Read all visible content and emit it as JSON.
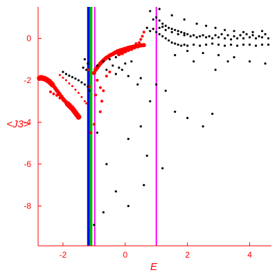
{
  "chart_data": {
    "type": "scatter",
    "xlabel": "E",
    "ylabel": "<J3>",
    "xlim": [
      -2.8,
      4.7
    ],
    "ylim": [
      -9.9,
      1.5
    ],
    "x_ticks": [
      -2,
      0,
      2,
      4
    ],
    "y_ticks": [
      0,
      -2,
      -4,
      -6,
      -8
    ],
    "colors": {
      "axes": "#ff0000",
      "blue_line": "#0000ff",
      "green_line": "#00bb00",
      "magenta_line": "#ff00ff",
      "red_points": "#ff0000",
      "black_points": "#000000"
    },
    "vertical_lines": [
      {
        "x": -1.18,
        "color": "#0000ff"
      },
      {
        "x": -1.1,
        "color": "#00bb00"
      },
      {
        "x": -0.98,
        "color": "#ff00ff"
      },
      {
        "x": 1.0,
        "color": "#ff00ff"
      }
    ],
    "series": [
      {
        "color": "#ff0000",
        "points": [
          [
            -2.75,
            -1.9
          ],
          [
            -2.7,
            -1.88
          ],
          [
            -2.65,
            -1.9
          ],
          [
            -2.6,
            -1.92
          ],
          [
            -2.55,
            -1.95
          ],
          [
            -2.5,
            -2.0
          ],
          [
            -2.45,
            -2.05
          ],
          [
            -2.4,
            -2.12
          ],
          [
            -2.35,
            -2.2
          ],
          [
            -2.3,
            -2.28
          ],
          [
            -2.25,
            -2.38
          ],
          [
            -2.2,
            -2.48
          ],
          [
            -2.15,
            -2.58
          ],
          [
            -2.1,
            -2.68
          ],
          [
            -2.05,
            -2.78
          ],
          [
            -2.0,
            -2.88
          ],
          [
            -1.95,
            -2.97
          ],
          [
            -1.9,
            -3.05
          ],
          [
            -1.85,
            -3.13
          ],
          [
            -1.8,
            -3.2
          ],
          [
            -1.75,
            -3.28
          ],
          [
            -1.7,
            -3.35
          ],
          [
            -1.65,
            -3.45
          ],
          [
            -1.6,
            -3.55
          ],
          [
            -1.55,
            -3.65
          ],
          [
            -1.5,
            -3.75
          ],
          [
            -2.4,
            -2.55
          ],
          [
            -2.3,
            -2.65
          ],
          [
            -2.2,
            -2.72
          ],
          [
            -2.1,
            -2.85
          ],
          [
            -2.0,
            -2.95
          ],
          [
            -1.9,
            -3.1
          ],
          [
            -1.8,
            -3.25
          ],
          [
            -1.7,
            -3.38
          ],
          [
            -2.1,
            -1.75
          ],
          [
            -2.0,
            -1.88
          ],
          [
            -1.9,
            -2.0
          ],
          [
            -1.8,
            -2.15
          ],
          [
            -1.7,
            -2.28
          ],
          [
            -1.6,
            -2.45
          ],
          [
            -1.5,
            -2.6
          ],
          [
            -1.4,
            -2.8
          ],
          [
            -1.3,
            -3.0
          ],
          [
            -1.25,
            -3.1
          ],
          [
            -1.0,
            -1.65
          ],
          [
            -0.95,
            -1.5
          ],
          [
            -0.9,
            -1.4
          ],
          [
            -0.85,
            -1.3
          ],
          [
            -0.8,
            -1.2
          ],
          [
            -0.75,
            -1.12
          ],
          [
            -0.7,
            -1.05
          ],
          [
            -0.65,
            -0.98
          ],
          [
            -0.6,
            -0.92
          ],
          [
            -0.55,
            -0.88
          ],
          [
            -0.5,
            -0.82
          ],
          [
            -0.45,
            -0.78
          ],
          [
            -0.4,
            -0.75
          ],
          [
            -0.35,
            -0.7
          ],
          [
            -0.3,
            -0.66
          ],
          [
            -0.25,
            -0.62
          ],
          [
            -0.2,
            -0.6
          ],
          [
            -0.15,
            -0.56
          ],
          [
            -0.1,
            -0.55
          ],
          [
            -0.05,
            -0.52
          ],
          [
            0.0,
            -0.5
          ],
          [
            0.05,
            -0.48
          ],
          [
            0.1,
            -0.45
          ],
          [
            0.15,
            -0.43
          ],
          [
            0.2,
            -0.42
          ],
          [
            0.25,
            -0.4
          ],
          [
            0.3,
            -0.38
          ],
          [
            0.35,
            -0.37
          ],
          [
            0.4,
            -0.36
          ],
          [
            0.45,
            -0.35
          ],
          [
            0.5,
            -0.34
          ],
          [
            0.55,
            -0.33
          ],
          [
            0.6,
            -0.32
          ],
          [
            -0.2,
            -0.75
          ],
          [
            -0.1,
            -0.7
          ],
          [
            0.0,
            -0.62
          ],
          [
            0.1,
            -0.55
          ],
          [
            0.2,
            -0.5
          ],
          [
            0.3,
            -0.46
          ],
          [
            0.4,
            -0.42
          ],
          [
            -0.9,
            -2.0
          ],
          [
            -0.8,
            -2.35
          ],
          [
            -0.75,
            -3.0
          ],
          [
            -0.7,
            -2.5
          ],
          [
            -0.6,
            -1.8
          ],
          [
            -0.5,
            -1.6
          ],
          [
            -1.2,
            -1.5
          ],
          [
            -1.15,
            -2.3
          ],
          [
            -0.8,
            -3.5
          ],
          [
            -0.95,
            -2.7
          ],
          [
            -1.1,
            -4.5
          ],
          [
            -1.0,
            -4.1
          ],
          [
            0.6,
            0.3
          ],
          [
            0.55,
            0.1
          ],
          [
            0.5,
            -0.05
          ],
          [
            0.45,
            -0.2
          ],
          [
            0.35,
            -0.25
          ],
          [
            0.7,
            0.5
          ],
          [
            0.8,
            0.55
          ],
          [
            0.3,
            -4.5
          ]
        ],
        "sizes": [
          4,
          4,
          4,
          4,
          4,
          4,
          4,
          4,
          4,
          3,
          3,
          3,
          3,
          3,
          3,
          3,
          3,
          3,
          4,
          4,
          4,
          4,
          4,
          4,
          4,
          4,
          2,
          2,
          2,
          2,
          2,
          2,
          2,
          2,
          1.5,
          1.5,
          1.5,
          1.5,
          1.5,
          1.5,
          1.5,
          1.5,
          1.5,
          1.5,
          3,
          3,
          3,
          3,
          3,
          3,
          3,
          3,
          3,
          3,
          3,
          3,
          3,
          3,
          3,
          3,
          3,
          3,
          3,
          3,
          3,
          3,
          3,
          3,
          3,
          3,
          3,
          3,
          3,
          3,
          3,
          3,
          3,
          3,
          3,
          3,
          3,
          3,
          2,
          2,
          2,
          2,
          2,
          2,
          2,
          2,
          2,
          2,
          2,
          2,
          2,
          2,
          2,
          2,
          2,
          2,
          2,
          1.5
        ]
      },
      {
        "color": "#000000",
        "points": [
          [
            -2.0,
            -1.6
          ],
          [
            -1.9,
            -1.7
          ],
          [
            -1.8,
            -1.78
          ],
          [
            -1.7,
            -1.85
          ],
          [
            -1.6,
            -1.92
          ],
          [
            -1.5,
            -2.0
          ],
          [
            -1.4,
            -2.1
          ],
          [
            -1.3,
            -2.2
          ],
          [
            -1.2,
            -2.3
          ],
          [
            -1.35,
            -1.4
          ],
          [
            -1.25,
            -1.5
          ],
          [
            -1.15,
            -2.5
          ],
          [
            -1.2,
            -1.2
          ],
          [
            -1.3,
            -1.0
          ],
          [
            -0.9,
            -1.3
          ],
          [
            -0.7,
            -1.1
          ],
          [
            -0.5,
            -1.0
          ],
          [
            -0.3,
            -0.9
          ],
          [
            -0.6,
            -1.5
          ],
          [
            -0.4,
            -1.3
          ],
          [
            -0.2,
            -1.4
          ],
          [
            0.0,
            -1.2
          ],
          [
            0.2,
            -1.1
          ],
          [
            -0.3,
            -1.7
          ],
          [
            -0.1,
            -1.5
          ],
          [
            0.1,
            -1.8
          ],
          [
            0.4,
            -2.2
          ],
          [
            0.5,
            -1.9
          ],
          [
            0.7,
            0.5
          ],
          [
            0.8,
            0.35
          ],
          [
            0.9,
            0.45
          ],
          [
            1.0,
            0.3
          ],
          [
            1.1,
            0.2
          ],
          [
            1.2,
            0.1
          ],
          [
            1.3,
            0.0
          ],
          [
            1.4,
            -0.1
          ],
          [
            1.5,
            -0.2
          ],
          [
            1.6,
            -0.25
          ],
          [
            1.7,
            -0.3
          ],
          [
            1.8,
            -0.35
          ],
          [
            1.9,
            -0.3
          ],
          [
            2.0,
            -0.35
          ],
          [
            2.2,
            -0.3
          ],
          [
            2.4,
            -0.35
          ],
          [
            2.6,
            -0.3
          ],
          [
            2.8,
            -0.25
          ],
          [
            3.0,
            -0.3
          ],
          [
            3.2,
            -0.35
          ],
          [
            3.4,
            -0.3
          ],
          [
            3.6,
            -0.35
          ],
          [
            3.8,
            -0.3
          ],
          [
            4.0,
            -0.3
          ],
          [
            4.2,
            -0.35
          ],
          [
            4.4,
            -0.3
          ],
          [
            4.6,
            -0.3
          ],
          [
            0.9,
            0.9
          ],
          [
            1.0,
            1.0
          ],
          [
            1.1,
            0.85
          ],
          [
            1.2,
            0.7
          ],
          [
            1.3,
            0.6
          ],
          [
            1.4,
            0.5
          ],
          [
            1.5,
            0.45
          ],
          [
            1.6,
            0.4
          ],
          [
            1.7,
            0.35
          ],
          [
            1.8,
            0.3
          ],
          [
            1.9,
            0.25
          ],
          [
            2.0,
            0.2
          ],
          [
            2.2,
            0.15
          ],
          [
            2.4,
            0.1
          ],
          [
            2.6,
            0.05
          ],
          [
            2.8,
            0.0
          ],
          [
            3.0,
            0.05
          ],
          [
            3.2,
            0.0
          ],
          [
            3.4,
            -0.05
          ],
          [
            3.6,
            0.0
          ],
          [
            3.8,
            0.0
          ],
          [
            4.0,
            0.05
          ],
          [
            4.2,
            0.0
          ],
          [
            4.4,
            0.05
          ],
          [
            4.6,
            0.0
          ],
          [
            1.1,
            0.5
          ],
          [
            1.2,
            0.55
          ],
          [
            1.3,
            0.4
          ],
          [
            1.5,
            0.3
          ],
          [
            1.7,
            0.2
          ],
          [
            1.9,
            0.15
          ],
          [
            2.1,
            0.1
          ],
          [
            2.3,
            0.05
          ],
          [
            2.5,
            0.15
          ],
          [
            2.7,
            0.1
          ],
          [
            2.9,
            0.15
          ],
          [
            3.1,
            0.2
          ],
          [
            3.3,
            0.15
          ],
          [
            3.5,
            0.1
          ],
          [
            3.7,
            0.15
          ],
          [
            3.9,
            0.2
          ],
          [
            4.1,
            0.15
          ],
          [
            4.3,
            0.1
          ],
          [
            4.5,
            0.2
          ],
          [
            0.8,
            1.3
          ],
          [
            1.1,
            1.4
          ],
          [
            1.5,
            1.1
          ],
          [
            1.9,
            0.9
          ],
          [
            2.3,
            0.7
          ],
          [
            2.6,
            0.6
          ],
          [
            2.9,
            0.5
          ],
          [
            3.2,
            0.4
          ],
          [
            3.5,
            0.35
          ],
          [
            3.8,
            0.3
          ],
          [
            4.1,
            0.3
          ],
          [
            4.4,
            0.35
          ],
          [
            2.0,
            -0.6
          ],
          [
            2.5,
            -0.7
          ],
          [
            3.0,
            -0.8
          ],
          [
            3.5,
            -0.9
          ],
          [
            4.0,
            -1.1
          ],
          [
            4.5,
            -1.2
          ],
          [
            2.9,
            -1.5
          ],
          [
            3.3,
            -1.1
          ],
          [
            2.2,
            -1.1
          ],
          [
            1.6,
            -0.8
          ],
          [
            1.0,
            -2.2
          ],
          [
            1.3,
            -2.5
          ],
          [
            1.6,
            -3.5
          ],
          [
            2.0,
            -3.8
          ],
          [
            2.5,
            -4.2
          ],
          [
            2.8,
            -3.6
          ],
          [
            0.8,
            -3.0
          ],
          [
            0.5,
            -4.2
          ],
          [
            0.7,
            -5.6
          ],
          [
            1.2,
            -6.2
          ],
          [
            0.6,
            -7.0
          ],
          [
            0.1,
            -8.0
          ],
          [
            -0.6,
            -6.0
          ],
          [
            -0.7,
            -8.3
          ],
          [
            -1.0,
            -8.9
          ],
          [
            -0.3,
            -7.3
          ],
          [
            0.1,
            -4.8
          ],
          [
            -0.9,
            -4.5
          ]
        ],
        "sizes": 1.6
      }
    ]
  }
}
